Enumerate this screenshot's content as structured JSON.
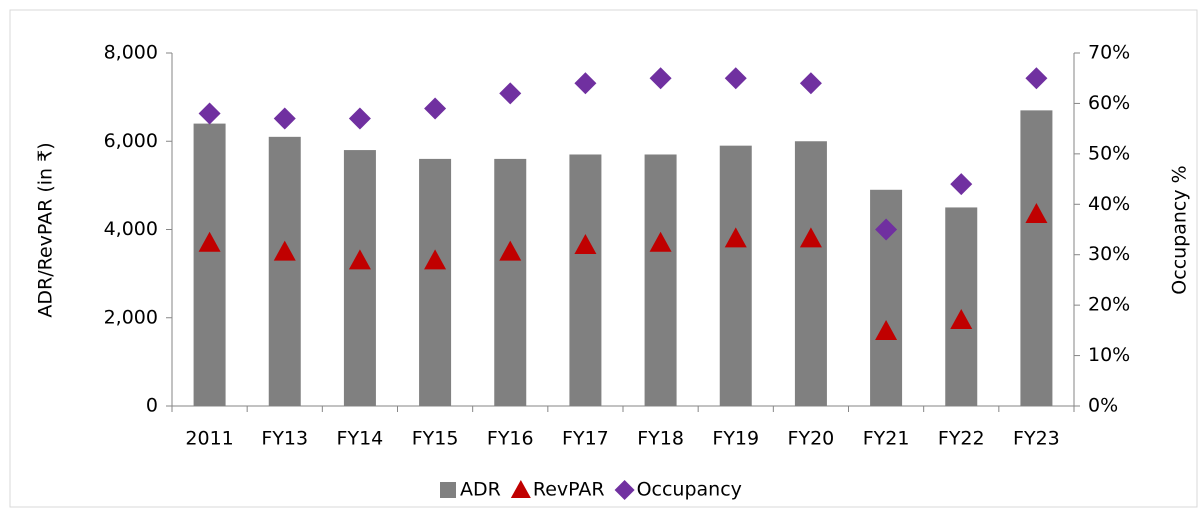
{
  "chart_data": {
    "type": "bar",
    "y_label": "ADR/RevPAR (in ₹)",
    "y2_label": "Occupancy %",
    "categories": [
      "2011",
      "FY13",
      "FY14",
      "FY15",
      "FY16",
      "FY17",
      "FY18",
      "FY19",
      "FY20",
      "FY21",
      "FY22",
      "FY23"
    ],
    "series": [
      {
        "name": "ADR",
        "color": "#808080",
        "marker": "bar",
        "values": [
          6400,
          6100,
          5800,
          5600,
          5600,
          5700,
          5700,
          5900,
          6000,
          4900,
          4500,
          6700
        ]
      },
      {
        "name": "RevPAR",
        "color": "#c00000",
        "marker": "triangle",
        "values": [
          3700,
          3500,
          3300,
          3300,
          3500,
          3650,
          3700,
          3800,
          3800,
          1700,
          1950,
          4350
        ]
      },
      {
        "name": "Occupancy",
        "color": "#7030a0",
        "marker": "diamond",
        "axis": "y2",
        "values": [
          58,
          57,
          57,
          59,
          62,
          64,
          65,
          65,
          64,
          35,
          44,
          65
        ]
      }
    ],
    "ylim": [
      0,
      8000
    ],
    "yticks": [
      0,
      {
        "value": 2000,
        "label": "2,000"
      },
      {
        "value": 4000,
        "label": "4,000"
      },
      {
        "value": 6000,
        "label": "6,000"
      },
      {
        "value": 8000,
        "label": "8,000"
      }
    ],
    "y2lim": [
      0,
      70
    ],
    "y2ticks": [
      {
        "value": 0,
        "label": "0%"
      },
      {
        "value": 10,
        "label": "10%"
      },
      {
        "value": 20,
        "label": "20%"
      },
      {
        "value": 30,
        "label": "30%"
      },
      {
        "value": 40,
        "label": "40%"
      },
      {
        "value": 50,
        "label": "50%"
      },
      {
        "value": 60,
        "label": "60%"
      },
      {
        "value": 70,
        "label": "70%"
      }
    ],
    "legend": "bottom"
  }
}
